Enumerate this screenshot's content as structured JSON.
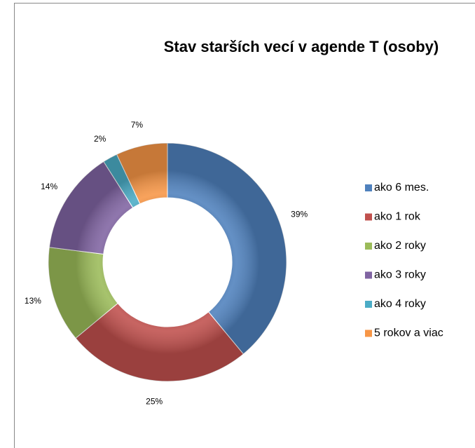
{
  "chart_data": {
    "type": "donut",
    "title": "Stav starších vecí v agende T (osoby)",
    "categories": [
      "ako 6 mes.",
      "ako 1 rok",
      "ako 2 roky",
      "ako 3 roky",
      "ako 4 roky",
      "5 rokov a viac"
    ],
    "values": [
      39,
      25,
      13,
      14,
      2,
      7
    ],
    "value_labels": [
      "39%",
      "25%",
      "13%",
      "14%",
      "2%",
      "7%"
    ],
    "colors": [
      "#4f81bd",
      "#c0504d",
      "#9bbb59",
      "#8064a2",
      "#4bacc6",
      "#f79646"
    ],
    "legend": "right"
  }
}
